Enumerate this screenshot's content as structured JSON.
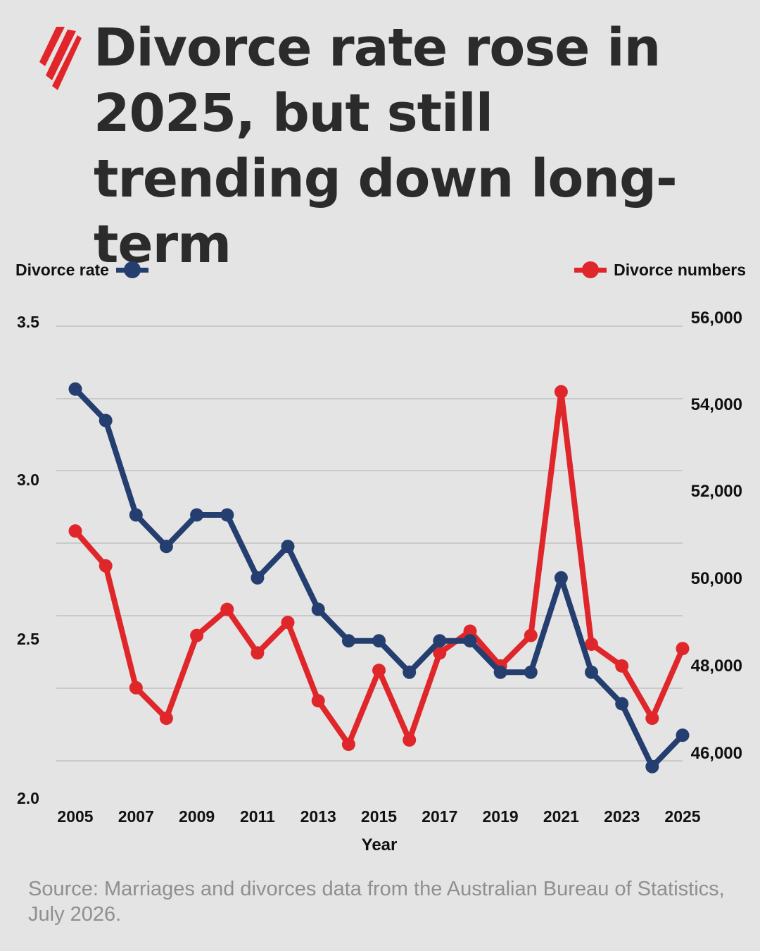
{
  "header": {
    "title": "Divorce rate rose in 2025, but still trending down long-term",
    "logo_icon": "sbs-logo-icon"
  },
  "legend": {
    "left": {
      "label": "Divorce rate",
      "color": "#243e6f"
    },
    "right": {
      "label": "Divorce numbers",
      "color": "#df272b"
    }
  },
  "chart_data": {
    "type": "line",
    "xlabel": "Year",
    "x": [
      2005,
      2006,
      2007,
      2008,
      2009,
      2010,
      2011,
      2012,
      2013,
      2014,
      2015,
      2016,
      2017,
      2018,
      2019,
      2020,
      2021,
      2022,
      2023,
      2024,
      2025
    ],
    "x_tick_labels": [
      "2005",
      "2007",
      "2009",
      "2011",
      "2013",
      "2015",
      "2017",
      "2019",
      "2021",
      "2023",
      "2025"
    ],
    "y_left": {
      "ylim": [
        2.0,
        3.5
      ],
      "tick_labels": [
        "3.5",
        "3.0",
        "2.5",
        "2.0"
      ]
    },
    "y_right": {
      "ylim": [
        45000,
        56000
      ],
      "tick_labels": [
        "56,000",
        "54,000",
        "52,000",
        "50,000",
        "48,000",
        "46,000"
      ]
    },
    "grid": true,
    "series": [
      {
        "name": "Divorce rate",
        "axis": "left",
        "color": "#243e6f",
        "values": [
          3.3,
          3.2,
          2.9,
          2.8,
          2.9,
          2.9,
          2.7,
          2.8,
          2.6,
          2.5,
          2.5,
          2.4,
          2.5,
          2.5,
          2.4,
          2.4,
          2.7,
          2.4,
          2.3,
          2.1,
          2.2
        ]
      },
      {
        "name": "Divorce numbers",
        "axis": "right",
        "color": "#df272b",
        "values": [
          51100,
          50300,
          47500,
          46800,
          48700,
          49300,
          48300,
          49000,
          47200,
          46200,
          47900,
          46300,
          48300,
          48800,
          48000,
          48700,
          54300,
          48500,
          48000,
          46800,
          48400
        ]
      }
    ]
  },
  "footer": {
    "source": "Source: Marriages and divorces data from the Australian Bureau of Statistics, July 2026."
  }
}
